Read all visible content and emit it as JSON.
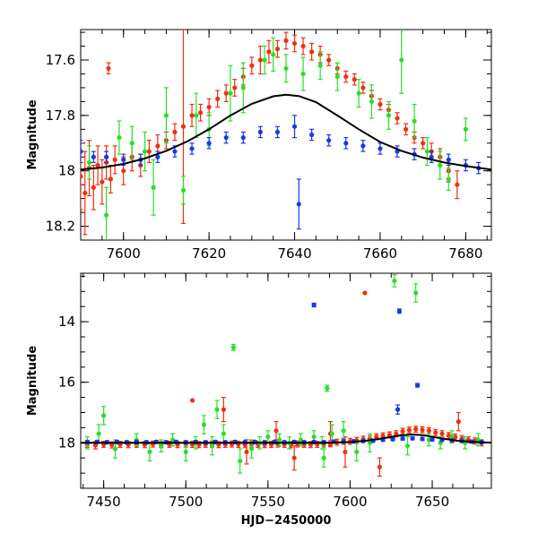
{
  "chart_data": [
    {
      "type": "scatter",
      "panel": "top",
      "title": "",
      "xlabel": "",
      "ylabel": "Magnitude",
      "xlim": [
        7590,
        7686
      ],
      "ylim": [
        18.25,
        17.49
      ],
      "y_inverted": true,
      "grid": false,
      "x_ticks": [
        7600,
        7620,
        7640,
        7660,
        7680
      ],
      "x_tick_labels": [
        "7600",
        "7620",
        "7640",
        "7660",
        "7680"
      ],
      "y_ticks": [
        17.6,
        17.8,
        18,
        18.2
      ],
      "y_tick_labels": [
        "17.6",
        "17.8",
        "18",
        "18.2"
      ],
      "colors": {
        "red": "#f03010",
        "green": "#28e028",
        "blue": "#1838e8",
        "model": "#000000"
      },
      "model_curve": {
        "x": [
          7590,
          7595,
          7600,
          7605,
          7610,
          7615,
          7620,
          7625,
          7630,
          7635,
          7638,
          7641,
          7645,
          7650,
          7655,
          7660,
          7665,
          7670,
          7675,
          7680,
          7686
        ],
        "y": [
          17.995,
          17.988,
          17.975,
          17.955,
          17.928,
          17.893,
          17.85,
          17.8,
          17.758,
          17.731,
          17.725,
          17.73,
          17.752,
          17.8,
          17.85,
          17.896,
          17.928,
          17.952,
          17.97,
          17.983,
          17.995
        ]
      },
      "series": [
        {
          "color": "red",
          "x": [
            7590,
            7591,
            7592,
            7593,
            7594,
            7595,
            7596,
            7597,
            7598,
            7600,
            7602,
            7604,
            7606,
            7608,
            7610,
            7612,
            7614,
            7616,
            7618,
            7620,
            7622,
            7624,
            7626,
            7628,
            7630,
            7632,
            7634,
            7636,
            7638,
            7640,
            7642,
            7644,
            7646,
            7648,
            7650,
            7652,
            7654,
            7656,
            7658,
            7660,
            7662,
            7664,
            7666,
            7668,
            7670,
            7672,
            7674,
            7676,
            7678,
            7596.5
          ],
          "y": [
            18.02,
            18.08,
            17.99,
            18.06,
            17.98,
            18.04,
            17.97,
            18.03,
            17.96,
            18.0,
            17.95,
            17.98,
            17.93,
            17.91,
            17.89,
            17.86,
            17.84,
            17.8,
            17.79,
            17.77,
            17.74,
            17.72,
            17.7,
            17.66,
            17.62,
            17.6,
            17.57,
            17.56,
            17.53,
            17.54,
            17.55,
            17.57,
            17.58,
            17.6,
            17.63,
            17.66,
            17.67,
            17.7,
            17.73,
            17.76,
            17.78,
            17.81,
            17.85,
            17.88,
            17.9,
            17.93,
            17.95,
            18.0,
            18.05,
            17.63
          ],
          "yerr": [
            0.12,
            0.15,
            0.1,
            0.08,
            0.07,
            0.08,
            0.06,
            0.05,
            0.05,
            0.05,
            0.05,
            0.04,
            0.04,
            0.04,
            0.03,
            0.03,
            0.35,
            0.04,
            0.03,
            0.03,
            0.03,
            0.03,
            0.03,
            0.03,
            0.03,
            0.05,
            0.04,
            0.03,
            0.03,
            0.03,
            0.03,
            0.03,
            0.03,
            0.02,
            0.02,
            0.02,
            0.02,
            0.02,
            0.02,
            0.02,
            0.02,
            0.02,
            0.02,
            0.02,
            0.02,
            0.03,
            0.03,
            0.04,
            0.05,
            0.02
          ]
        },
        {
          "color": "green",
          "x": [
            7592,
            7596,
            7599,
            7602,
            7605,
            7607,
            7610,
            7614,
            7617,
            7620,
            7625,
            7628,
            7633,
            7635,
            7638,
            7642,
            7646,
            7650,
            7655,
            7658,
            7662,
            7665,
            7668,
            7671,
            7674,
            7676,
            7680
          ],
          "y": [
            17.97,
            18.16,
            17.88,
            17.9,
            17.93,
            18.06,
            17.8,
            18.07,
            17.8,
            17.85,
            17.72,
            17.7,
            17.6,
            17.58,
            17.63,
            17.65,
            17.62,
            17.66,
            17.72,
            17.75,
            17.8,
            17.6,
            17.82,
            17.93,
            17.98,
            18.03,
            17.85
          ],
          "yerr": [
            0.06,
            0.1,
            0.06,
            0.06,
            0.07,
            0.1,
            0.1,
            0.05,
            0.08,
            0.06,
            0.1,
            0.09,
            0.05,
            0.06,
            0.05,
            0.06,
            0.05,
            0.05,
            0.05,
            0.06,
            0.05,
            0.12,
            0.06,
            0.05,
            0.05,
            0.04,
            0.04
          ]
        },
        {
          "color": "blue",
          "x": [
            7590,
            7593,
            7596,
            7600,
            7604,
            7608,
            7612,
            7616,
            7620,
            7624,
            7628,
            7632,
            7636,
            7640,
            7641,
            7644,
            7648,
            7652,
            7656,
            7660,
            7664,
            7668,
            7672,
            7676,
            7680,
            7683
          ],
          "y": [
            17.93,
            17.95,
            17.95,
            17.96,
            17.96,
            17.95,
            17.93,
            17.92,
            17.9,
            17.88,
            17.88,
            17.86,
            17.86,
            17.84,
            18.12,
            17.87,
            17.89,
            17.9,
            17.91,
            17.92,
            17.93,
            17.94,
            17.95,
            17.96,
            17.98,
            17.99
          ],
          "yerr": [
            0.04,
            0.02,
            0.02,
            0.02,
            0.02,
            0.02,
            0.02,
            0.02,
            0.02,
            0.02,
            0.02,
            0.02,
            0.02,
            0.04,
            0.09,
            0.02,
            0.02,
            0.02,
            0.02,
            0.02,
            0.02,
            0.02,
            0.02,
            0.02,
            0.02,
            0.02
          ]
        }
      ]
    },
    {
      "type": "scatter",
      "panel": "bottom",
      "title": "",
      "xlabel": "HJD−2450000",
      "ylabel": "Magnitude",
      "xlim": [
        7436,
        7686
      ],
      "ylim": [
        19.5,
        12.4
      ],
      "y_inverted": true,
      "grid": false,
      "x_ticks": [
        7450,
        7500,
        7550,
        7600,
        7650
      ],
      "x_tick_labels": [
        "7450",
        "7500",
        "7550",
        "7600",
        "7650"
      ],
      "y_ticks": [
        14,
        16,
        18
      ],
      "y_tick_labels": [
        "14",
        "16",
        "18"
      ],
      "colors": {
        "red": "#f03010",
        "green": "#28e028",
        "blue": "#1838e8",
        "model": "#000000"
      },
      "model_curve": {
        "x": [
          7436,
          7500,
          7560,
          7580,
          7590,
          7600,
          7610,
          7620,
          7630,
          7638,
          7645,
          7655,
          7665,
          7675,
          7686
        ],
        "y": [
          18.0,
          18.0,
          18.0,
          18.0,
          17.995,
          17.975,
          17.928,
          17.85,
          17.758,
          17.725,
          17.752,
          17.85,
          17.928,
          17.97,
          17.995
        ]
      },
      "series": [
        {
          "color": "red",
          "x": [
            7440,
            7445,
            7450,
            7455,
            7460,
            7465,
            7470,
            7475,
            7480,
            7485,
            7490,
            7495,
            7500,
            7504,
            7508,
            7512,
            7516,
            7520,
            7524,
            7528,
            7532,
            7536,
            7540,
            7544,
            7548,
            7552,
            7556,
            7560,
            7564,
            7568,
            7572,
            7576,
            7580,
            7584,
            7588,
            7592,
            7596,
            7600,
            7604,
            7608,
            7612,
            7616,
            7620,
            7624,
            7628,
            7632,
            7636,
            7640,
            7644,
            7648,
            7652,
            7656,
            7660,
            7664,
            7668,
            7672,
            7676,
            7680,
            7609,
            7504,
            7618,
            7537,
            7555,
            7588,
            7597,
            7666,
            7523,
            7566
          ],
          "y": [
            18.05,
            18.08,
            18.05,
            18.07,
            18.05,
            18.06,
            18.05,
            18.06,
            18.04,
            18.06,
            18.05,
            18.06,
            18.04,
            18.05,
            18.06,
            18.05,
            18.04,
            18.06,
            18.05,
            18.04,
            18.05,
            18.06,
            18.04,
            18.05,
            18.06,
            18.05,
            18.04,
            18.05,
            18.06,
            18.04,
            18.05,
            18.06,
            18.05,
            18.04,
            18.03,
            17.98,
            17.95,
            17.95,
            17.92,
            17.88,
            17.86,
            17.8,
            17.77,
            17.74,
            17.7,
            17.62,
            17.58,
            17.55,
            17.57,
            17.6,
            17.66,
            17.7,
            17.76,
            17.81,
            17.86,
            17.9,
            17.94,
            18.0,
            13.05,
            16.6,
            18.8,
            18.3,
            17.6,
            17.7,
            18.3,
            17.3,
            16.9,
            18.5
          ],
          "yerr": [
            0.1,
            0.12,
            0.1,
            0.1,
            0.1,
            0.1,
            0.1,
            0.1,
            0.1,
            0.1,
            0.1,
            0.1,
            0.1,
            0.1,
            0.1,
            0.1,
            0.1,
            0.1,
            0.1,
            0.1,
            0.1,
            0.1,
            0.1,
            0.1,
            0.1,
            0.1,
            0.1,
            0.1,
            0.1,
            0.1,
            0.1,
            0.1,
            0.1,
            0.1,
            0.1,
            0.1,
            0.1,
            0.1,
            0.1,
            0.1,
            0.1,
            0.1,
            0.1,
            0.1,
            0.1,
            0.1,
            0.1,
            0.1,
            0.1,
            0.1,
            0.1,
            0.1,
            0.1,
            0.1,
            0.1,
            0.1,
            0.1,
            0.1,
            0.0,
            0.0,
            0.3,
            0.4,
            0.3,
            0.4,
            0.5,
            0.3,
            0.4,
            0.4
          ]
        },
        {
          "color": "green",
          "x": [
            7440,
            7447,
            7450,
            7457,
            7470,
            7478,
            7485,
            7492,
            7500,
            7506,
            7511,
            7516,
            7523,
            7529,
            7533,
            7540,
            7545,
            7550,
            7557,
            7563,
            7570,
            7578,
            7583,
            7586,
            7589,
            7596,
            7604,
            7612,
            7627,
            7635,
            7640,
            7648,
            7655,
            7662,
            7670,
            7678,
            7584,
            7519
          ],
          "y": [
            18.0,
            17.7,
            17.1,
            18.2,
            17.9,
            18.3,
            18.1,
            17.9,
            18.3,
            18.0,
            17.4,
            18.1,
            17.7,
            14.85,
            18.6,
            18.2,
            18.0,
            17.8,
            17.9,
            18.0,
            17.9,
            17.8,
            18.0,
            16.2,
            17.7,
            17.6,
            18.3,
            18.0,
            12.65,
            18.1,
            13.05,
            17.9,
            18.0,
            17.8,
            18.0,
            17.9,
            18.5,
            16.9
          ],
          "yerr": [
            0.2,
            0.3,
            0.3,
            0.3,
            0.2,
            0.3,
            0.2,
            0.2,
            0.3,
            0.2,
            0.3,
            0.3,
            0.3,
            0.1,
            0.4,
            0.3,
            0.2,
            0.2,
            0.2,
            0.2,
            0.2,
            0.2,
            0.2,
            0.1,
            0.3,
            0.3,
            0.3,
            0.3,
            0.2,
            0.3,
            0.3,
            0.2,
            0.2,
            0.2,
            0.2,
            0.2,
            0.3,
            0.3
          ]
        },
        {
          "color": "blue",
          "x": [
            7440,
            7446,
            7452,
            7458,
            7464,
            7470,
            7476,
            7482,
            7488,
            7494,
            7500,
            7506,
            7512,
            7518,
            7524,
            7530,
            7536,
            7542,
            7548,
            7554,
            7560,
            7566,
            7572,
            7578,
            7584,
            7590,
            7596,
            7602,
            7608,
            7614,
            7620,
            7626,
            7632,
            7638,
            7644,
            7650,
            7656,
            7662,
            7668,
            7674,
            7680,
            7578,
            7630,
            7641,
            7629
          ],
          "y": [
            17.97,
            17.97,
            17.98,
            17.97,
            17.98,
            17.97,
            17.98,
            17.97,
            17.98,
            17.97,
            17.98,
            17.97,
            17.98,
            17.97,
            17.98,
            17.97,
            17.98,
            17.97,
            17.98,
            17.97,
            17.98,
            17.97,
            17.98,
            17.97,
            17.98,
            17.96,
            17.95,
            17.95,
            17.94,
            17.93,
            17.9,
            17.88,
            17.86,
            17.85,
            17.87,
            17.89,
            17.9,
            17.92,
            17.94,
            17.96,
            17.98,
            13.45,
            13.65,
            16.1,
            16.9
          ],
          "yerr": [
            0.05,
            0.05,
            0.05,
            0.05,
            0.05,
            0.05,
            0.05,
            0.05,
            0.05,
            0.05,
            0.05,
            0.05,
            0.05,
            0.05,
            0.05,
            0.05,
            0.05,
            0.05,
            0.05,
            0.05,
            0.05,
            0.05,
            0.05,
            0.05,
            0.05,
            0.05,
            0.05,
            0.05,
            0.05,
            0.05,
            0.05,
            0.05,
            0.05,
            0.05,
            0.05,
            0.05,
            0.05,
            0.05,
            0.05,
            0.05,
            0.05,
            0.06,
            0.07,
            0.06,
            0.15
          ]
        }
      ]
    }
  ]
}
